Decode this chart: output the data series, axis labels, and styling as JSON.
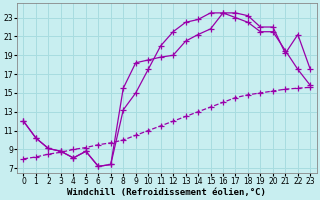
{
  "title": "",
  "xlabel": "Windchill (Refroidissement éolien,°C)",
  "ylabel": "",
  "bg_color": "#c8eef0",
  "grid_color": "#a8dce0",
  "line_color": "#9900aa",
  "xlim": [
    -0.5,
    23.5
  ],
  "ylim": [
    6.5,
    24.5
  ],
  "xticks": [
    0,
    1,
    2,
    3,
    4,
    5,
    6,
    7,
    8,
    9,
    10,
    11,
    12,
    13,
    14,
    15,
    16,
    17,
    18,
    19,
    20,
    21,
    22,
    23
  ],
  "yticks": [
    7,
    9,
    11,
    13,
    15,
    17,
    19,
    21,
    23
  ],
  "line1_x": [
    0,
    1,
    2,
    3,
    4,
    5,
    6,
    7,
    8,
    9,
    10,
    11,
    12,
    13,
    14,
    15,
    16,
    17,
    18,
    19,
    20,
    21,
    22,
    23
  ],
  "line1_y": [
    12.0,
    10.2,
    9.1,
    8.8,
    8.1,
    8.8,
    7.2,
    7.4,
    15.5,
    18.2,
    18.5,
    18.8,
    19.0,
    20.5,
    21.2,
    21.8,
    23.5,
    23.5,
    23.2,
    22.0,
    22.0,
    19.2,
    21.2,
    17.5
  ],
  "line2_x": [
    0,
    1,
    2,
    3,
    4,
    5,
    6,
    7,
    8,
    9,
    10,
    11,
    12,
    13,
    14,
    15,
    16,
    17,
    18,
    19,
    20,
    21,
    22,
    23
  ],
  "line2_y": [
    12.0,
    10.2,
    9.1,
    8.8,
    8.1,
    8.8,
    7.2,
    7.4,
    13.2,
    15.0,
    17.5,
    20.0,
    21.5,
    22.5,
    22.8,
    23.5,
    23.5,
    23.0,
    22.5,
    21.5,
    21.5,
    19.5,
    17.5,
    15.8
  ],
  "line3_x": [
    0,
    1,
    2,
    3,
    4,
    5,
    6,
    7,
    8,
    9,
    10,
    11,
    12,
    13,
    14,
    15,
    16,
    17,
    18,
    19,
    20,
    21,
    22,
    23
  ],
  "line3_y": [
    8.0,
    8.2,
    8.5,
    8.7,
    9.0,
    9.2,
    9.5,
    9.7,
    10.0,
    10.5,
    11.0,
    11.5,
    12.0,
    12.5,
    13.0,
    13.5,
    14.0,
    14.5,
    14.8,
    15.0,
    15.2,
    15.4,
    15.5,
    15.6
  ],
  "marker": "+",
  "markersize": 4,
  "linewidth": 0.9,
  "xlabel_fontsize": 6.5,
  "tick_fontsize": 5.5
}
